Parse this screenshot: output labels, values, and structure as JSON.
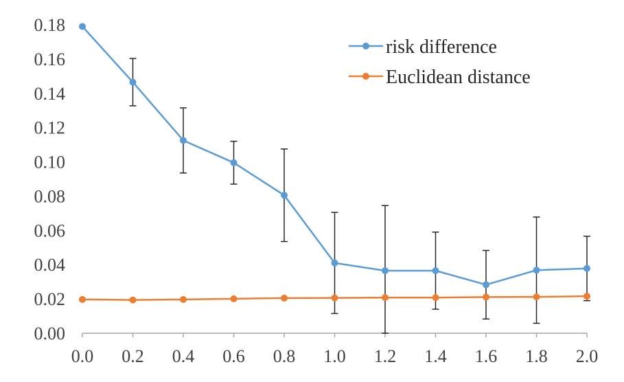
{
  "chart_data": {
    "type": "line",
    "title": "",
    "xlabel": "",
    "ylabel": "",
    "x": [
      0.0,
      0.2,
      0.4,
      0.6,
      0.8,
      1.0,
      1.2,
      1.4,
      1.6,
      1.8,
      2.0
    ],
    "x_tick_labels": [
      "0.0",
      "0.2",
      "0.4",
      "0.6",
      "0.8",
      "1.0",
      "1.2",
      "1.4",
      "1.6",
      "1.8",
      "2.0"
    ],
    "xlim": [
      0,
      2
    ],
    "ylim": [
      0,
      0.18
    ],
    "y_ticks": [
      0.0,
      0.02,
      0.04,
      0.06,
      0.08,
      0.1,
      0.12,
      0.14,
      0.16,
      0.18
    ],
    "y_tick_labels": [
      "0.00",
      "0.02",
      "0.04",
      "0.06",
      "0.08",
      "0.10",
      "0.12",
      "0.14",
      "0.16",
      "0.18"
    ],
    "grid": false,
    "legend_position": "top-right",
    "series": [
      {
        "name": "risk difference",
        "color": "#5b9bd5",
        "values": [
          0.179,
          0.1465,
          0.1125,
          0.0995,
          0.0805,
          0.041,
          0.0365,
          0.0365,
          0.0283,
          0.0368,
          0.0378
        ],
        "error": [
          0,
          0.0138,
          0.019,
          0.0125,
          0.027,
          0.0295,
          0.038,
          0.0225,
          0.02,
          0.031,
          0.0188
        ]
      },
      {
        "name": "Euclidean distance",
        "color": "#ed7d31",
        "values": [
          0.0197,
          0.0194,
          0.0197,
          0.0201,
          0.0205,
          0.0206,
          0.0208,
          0.0208,
          0.0211,
          0.0212,
          0.0216
        ],
        "error": [
          0,
          0,
          0,
          0,
          0,
          0,
          0,
          0,
          0,
          0,
          0
        ]
      }
    ]
  }
}
